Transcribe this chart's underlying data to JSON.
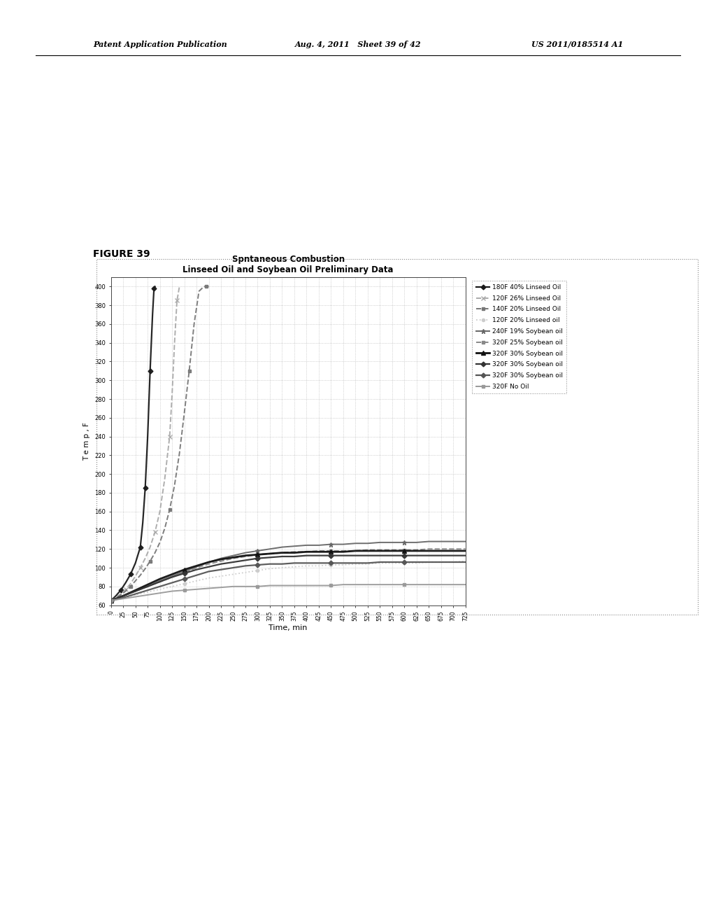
{
  "title_line1": "Spntaneous Combustion",
  "title_line2": "Linseed Oil and Soybean Oil Preliminary Data",
  "xlabel": "Time, min",
  "ylabel": "T e m p , F",
  "figure_label": "FIGURE 39",
  "header_left": "Patent Application Publication",
  "header_mid": "Aug. 4, 2011   Sheet 39 of 42",
  "header_right": "US 2011/0185514 A1",
  "ylim": [
    60,
    410
  ],
  "xlim": [
    0,
    725
  ],
  "yticks": [
    60,
    80,
    100,
    120,
    140,
    160,
    180,
    200,
    220,
    240,
    260,
    280,
    300,
    320,
    340,
    360,
    380,
    400
  ],
  "xticks": [
    0,
    25,
    50,
    75,
    100,
    125,
    150,
    175,
    200,
    225,
    250,
    275,
    300,
    325,
    350,
    375,
    400,
    425,
    450,
    475,
    500,
    525,
    550,
    575,
    600,
    625,
    650,
    675,
    700,
    725
  ],
  "series": [
    {
      "label": "180F 40% Linseed Oil",
      "color": "#1a1a1a",
      "linewidth": 1.6,
      "marker": "D",
      "markersize": 3.5,
      "linestyle": "-",
      "x": [
        0,
        10,
        20,
        30,
        40,
        50,
        60,
        65,
        70,
        75,
        80,
        85,
        88,
        90
      ],
      "y": [
        65,
        70,
        76,
        84,
        93,
        105,
        122,
        148,
        185,
        240,
        310,
        370,
        398,
        400
      ]
    },
    {
      "label": "120F 26% Linseed Oil",
      "color": "#aaaaaa",
      "linewidth": 1.4,
      "marker": "x",
      "markersize": 5,
      "linestyle": "--",
      "x": [
        0,
        10,
        20,
        30,
        40,
        50,
        60,
        70,
        80,
        90,
        100,
        110,
        120,
        125,
        130,
        135,
        140
      ],
      "y": [
        65,
        68,
        72,
        77,
        83,
        91,
        100,
        110,
        122,
        138,
        160,
        195,
        240,
        285,
        340,
        385,
        400
      ]
    },
    {
      "label": "140F 20% Linseed Oil",
      "color": "#777777",
      "linewidth": 1.4,
      "marker": "s",
      "markersize": 3.5,
      "linestyle": "--",
      "x": [
        0,
        10,
        20,
        30,
        40,
        50,
        60,
        70,
        80,
        90,
        100,
        110,
        120,
        130,
        140,
        150,
        160,
        170,
        180,
        190,
        195,
        200
      ],
      "y": [
        65,
        68,
        71,
        75,
        80,
        86,
        92,
        99,
        107,
        116,
        127,
        142,
        162,
        188,
        222,
        265,
        310,
        360,
        395,
        400,
        400,
        400
      ]
    },
    {
      "label": "120F 20% Linseed oil",
      "color": "#cccccc",
      "linewidth": 1.3,
      "marker": "o",
      "markersize": 3,
      "linestyle": ":",
      "x": [
        0,
        25,
        50,
        75,
        100,
        125,
        150,
        175,
        200,
        225,
        250,
        275,
        300,
        325,
        350,
        375,
        400,
        425,
        450,
        475,
        500,
        525,
        550,
        575,
        600,
        625,
        650,
        675,
        700,
        725
      ],
      "y": [
        65,
        68,
        71,
        74,
        77,
        80,
        83,
        86,
        89,
        91,
        93,
        95,
        97,
        99,
        100,
        101,
        102,
        102,
        103,
        103,
        104,
        104,
        105,
        105,
        105,
        105,
        106,
        106,
        106,
        107
      ]
    },
    {
      "label": "240F 19% Soybean oil",
      "color": "#666666",
      "linewidth": 1.4,
      "marker": "*",
      "markersize": 5,
      "linestyle": "-",
      "x": [
        0,
        25,
        50,
        75,
        100,
        125,
        150,
        175,
        200,
        225,
        250,
        275,
        300,
        325,
        350,
        375,
        400,
        425,
        450,
        475,
        500,
        525,
        550,
        575,
        600,
        625,
        650,
        675,
        700,
        725
      ],
      "y": [
        65,
        70,
        75,
        80,
        86,
        91,
        96,
        101,
        106,
        110,
        113,
        116,
        118,
        120,
        122,
        123,
        124,
        124,
        125,
        125,
        126,
        126,
        127,
        127,
        127,
        127,
        128,
        128,
        128,
        128
      ]
    },
    {
      "label": "320F 25% Soybean oil",
      "color": "#888888",
      "linewidth": 1.4,
      "marker": "s",
      "markersize": 3.5,
      "linestyle": "--",
      "x": [
        0,
        25,
        50,
        75,
        100,
        125,
        150,
        175,
        200,
        225,
        250,
        275,
        300,
        325,
        350,
        375,
        400,
        425,
        450,
        475,
        500,
        525,
        550,
        575,
        600,
        625,
        650,
        675,
        700,
        725
      ],
      "y": [
        65,
        70,
        75,
        80,
        85,
        90,
        95,
        100,
        104,
        107,
        110,
        112,
        114,
        115,
        116,
        117,
        117,
        118,
        118,
        118,
        118,
        119,
        119,
        119,
        119,
        119,
        120,
        120,
        120,
        120
      ]
    },
    {
      "label": "320F 30% Soybean oil",
      "color": "#111111",
      "linewidth": 2.0,
      "marker": "^",
      "markersize": 4,
      "linestyle": "-",
      "x": [
        0,
        25,
        50,
        75,
        100,
        125,
        150,
        175,
        200,
        225,
        250,
        275,
        300,
        325,
        350,
        375,
        400,
        425,
        450,
        475,
        500,
        525,
        550,
        575,
        600,
        625,
        650,
        675,
        700,
        725
      ],
      "y": [
        65,
        70,
        76,
        82,
        88,
        93,
        98,
        102,
        106,
        109,
        111,
        113,
        114,
        115,
        116,
        116,
        117,
        117,
        117,
        117,
        118,
        118,
        118,
        118,
        118,
        118,
        118,
        118,
        118,
        118
      ]
    },
    {
      "label": "320F 30% Soybean oil",
      "color": "#333333",
      "linewidth": 1.6,
      "marker": "D",
      "markersize": 3.5,
      "linestyle": "-",
      "x": [
        0,
        25,
        50,
        75,
        100,
        125,
        150,
        175,
        200,
        225,
        250,
        275,
        300,
        325,
        350,
        375,
        400,
        425,
        450,
        475,
        500,
        525,
        550,
        575,
        600,
        625,
        650,
        675,
        700,
        725
      ],
      "y": [
        65,
        70,
        75,
        80,
        85,
        90,
        94,
        98,
        101,
        104,
        106,
        108,
        110,
        111,
        112,
        112,
        113,
        113,
        113,
        113,
        113,
        113,
        113,
        113,
        113,
        113,
        113,
        113,
        113,
        113
      ]
    },
    {
      "label": "320F 30% Soybean oil",
      "color": "#555555",
      "linewidth": 1.6,
      "marker": "D",
      "markersize": 3.5,
      "linestyle": "-",
      "x": [
        0,
        25,
        50,
        75,
        100,
        125,
        150,
        175,
        200,
        225,
        250,
        275,
        300,
        325,
        350,
        375,
        400,
        425,
        450,
        475,
        500,
        525,
        550,
        575,
        600,
        625,
        650,
        675,
        700,
        725
      ],
      "y": [
        65,
        68,
        72,
        76,
        80,
        84,
        88,
        92,
        96,
        98,
        100,
        102,
        103,
        104,
        104,
        105,
        105,
        105,
        105,
        105,
        105,
        105,
        106,
        106,
        106,
        106,
        106,
        106,
        106,
        106
      ]
    },
    {
      "label": "320F No Oil",
      "color": "#999999",
      "linewidth": 1.4,
      "marker": "s",
      "markersize": 3.5,
      "linestyle": "-",
      "x": [
        0,
        25,
        50,
        75,
        100,
        125,
        150,
        175,
        200,
        225,
        250,
        275,
        300,
        325,
        350,
        375,
        400,
        425,
        450,
        475,
        500,
        525,
        550,
        575,
        600,
        625,
        650,
        675,
        700,
        725
      ],
      "y": [
        65,
        67,
        69,
        71,
        73,
        75,
        76,
        77,
        78,
        79,
        80,
        80,
        80,
        81,
        81,
        81,
        81,
        81,
        81,
        82,
        82,
        82,
        82,
        82,
        82,
        82,
        82,
        82,
        82,
        82
      ]
    }
  ]
}
